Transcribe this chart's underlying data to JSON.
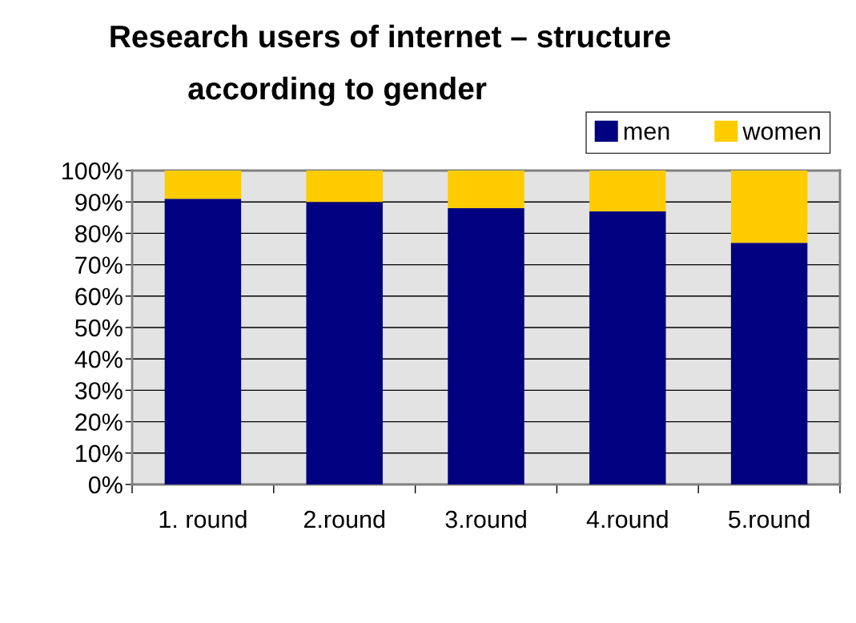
{
  "chart_data": {
    "type": "bar",
    "title": "Research users of internet – structure\naccording to gender",
    "categories": [
      "1. round",
      "2.round",
      "3.round",
      "4.round",
      "5.round"
    ],
    "series": [
      {
        "name": "men",
        "color": "#000080",
        "values": [
          91,
          90,
          88,
          87,
          77
        ]
      },
      {
        "name": "women",
        "color": "#ffcc00",
        "values": [
          9,
          10,
          12,
          13,
          23
        ]
      }
    ],
    "stacked": true,
    "ylim": [
      0,
      100
    ],
    "yticks": [
      {
        "value": 0,
        "label": "0%"
      },
      {
        "value": 10,
        "label": "10%"
      },
      {
        "value": 20,
        "label": "20%"
      },
      {
        "value": 30,
        "label": "30%"
      },
      {
        "value": 40,
        "label": "40%"
      },
      {
        "value": 50,
        "label": "50%"
      },
      {
        "value": 60,
        "label": "60%"
      },
      {
        "value": 70,
        "label": "70%"
      },
      {
        "value": 80,
        "label": "80%"
      },
      {
        "value": 90,
        "label": "90%"
      },
      {
        "value": 100,
        "label": "100%"
      }
    ],
    "grid": "y",
    "legend": "top right"
  }
}
